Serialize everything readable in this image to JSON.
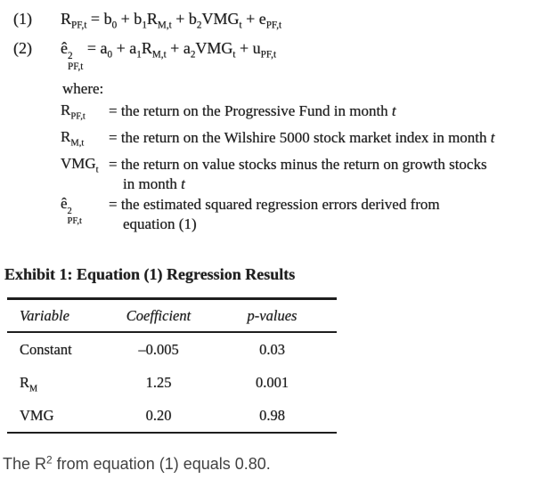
{
  "equations": [
    {
      "number": "(1)",
      "segments": [
        {
          "t": "R",
          "sub": "PF,t"
        },
        {
          "t": " = b",
          "sub": "0"
        },
        {
          "t": " + b",
          "sub": "1"
        },
        {
          "t": "R",
          "sub": "M,t"
        },
        {
          "t": " + b",
          "sub": "2"
        },
        {
          "t": "VMG",
          "sub": "t"
        },
        {
          "t": " + e",
          "sub": "PF,t"
        }
      ]
    },
    {
      "number": "(2)",
      "segments": [
        {
          "t": "ê",
          "sup": "2",
          "sub": "PF,t"
        },
        {
          "t": " = a",
          "sub": "0"
        },
        {
          "t": " + a",
          "sub": "1"
        },
        {
          "t": "R",
          "sub": "M,t"
        },
        {
          "t": " + a",
          "sub": "2"
        },
        {
          "t": "VMG",
          "sub": "t"
        },
        {
          "t": " + u",
          "sub": "PF,t"
        }
      ]
    }
  ],
  "where_label": "where:",
  "definitions": [
    {
      "symbol": [
        {
          "t": "R",
          "sub": "PF,t"
        }
      ],
      "line1": [
        {
          "t": "= the return on the Progressive Fund in month "
        },
        {
          "t": "t",
          "i": true
        }
      ]
    },
    {
      "symbol": [
        {
          "t": "R",
          "sub": "M,t"
        }
      ],
      "line1": [
        {
          "t": "= the return on the Wilshire 5000 stock market index in month "
        },
        {
          "t": "t",
          "i": true
        }
      ]
    },
    {
      "symbol": [
        {
          "t": "VMG",
          "sub": "t"
        }
      ],
      "line1": [
        {
          "t": "= the return on value stocks minus the return on growth stocks"
        }
      ],
      "line2": [
        {
          "t": "in month "
        },
        {
          "t": "t",
          "i": true
        }
      ]
    },
    {
      "symbol": [
        {
          "t": "ê",
          "sup": "2",
          "sub": "PF,t"
        }
      ],
      "line1": [
        {
          "t": "= the estimated squared regression errors derived from"
        }
      ],
      "line2": [
        {
          "t": "equation (1)"
        }
      ]
    }
  ],
  "exhibit": {
    "title": "Exhibit 1: Equation (1) Regression Results",
    "table": {
      "headers": [
        "Variable",
        "Coefficient",
        "p-values"
      ],
      "rows": [
        {
          "variable": [
            {
              "t": "Constant"
            }
          ],
          "coefficient": "–0.005",
          "p_value": "0.03"
        },
        {
          "variable": [
            {
              "t": "R",
              "sub": "M"
            }
          ],
          "coefficient": "1.25",
          "p_value": "0.001"
        },
        {
          "variable": [
            {
              "t": "VMG"
            }
          ],
          "coefficient": "0.20",
          "p_value": "0.98"
        }
      ]
    }
  },
  "footer": {
    "segments": [
      {
        "t": "The R",
        "sup": "2"
      },
      {
        "t": " from equation (1) equals 0.80."
      }
    ]
  },
  "colors": {
    "ink": "#1f1f1f",
    "footer_ink": "#414141",
    "rule": "#1e1e1e",
    "background": "#ffffff"
  }
}
